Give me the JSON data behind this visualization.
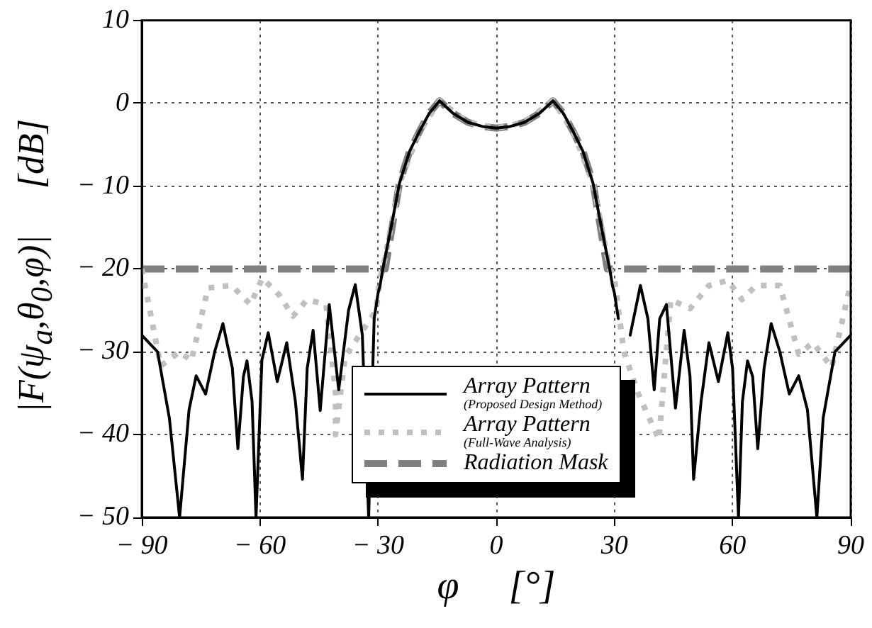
{
  "chart_data": {
    "type": "line",
    "xlabel": "φ     [°]",
    "ylabel": "|F(ψ$_{a}$,θ$_{0}$,φ)|     [dB]",
    "xlim": [
      -90,
      90
    ],
    "xticks": [
      -90,
      -60,
      -30,
      0,
      30,
      60,
      90
    ],
    "ylim": [
      -50,
      10
    ],
    "yticks": [
      -50,
      -40,
      -30,
      -20,
      -10,
      0,
      10
    ],
    "grid": true,
    "legend": "bottom",
    "marker": "none",
    "series": [
      {
        "name": "Array Pattern (Proposed Design Method)",
        "color": "#000000",
        "line_style": "solid",
        "x": [
          -90,
          -86,
          -83,
          -80.4,
          -78,
          -76.2,
          -73.8,
          -71.5,
          -69.4,
          -67,
          -65.6,
          -64.2,
          -63.3,
          -62,
          -61,
          -59.5,
          -57.9,
          -55.6,
          -53.2,
          -51,
          -49.2,
          -48,
          -46.5,
          -44.7,
          -42.4,
          -40,
          -37.5,
          -35.8,
          -34,
          -32.4,
          -31,
          -30,
          -29.5,
          -28.8,
          -26.5,
          -24.6,
          -22,
          -19.5,
          -17,
          -14.4,
          -11,
          -7.2,
          -3.5,
          0,
          3.5,
          7.2,
          11,
          14.4,
          17,
          19.5,
          22,
          24.6,
          26.5,
          28.8,
          29.5,
          30,
          31,
          32.4,
          34,
          36.6,
          38.5,
          40.1,
          41.5,
          43.2,
          45.5,
          47.7,
          49.2,
          50.1,
          52,
          54,
          56.4,
          58.8,
          60,
          61.5,
          62.5,
          63.8,
          65.1,
          66.4,
          68,
          69.8,
          72,
          74.4,
          76.8,
          79,
          81.4,
          83,
          86,
          90
        ],
        "values": [
          -28,
          -30,
          -38,
          -50,
          -37,
          -32.9,
          -35.1,
          -30,
          -26.6,
          -32,
          -41.7,
          -33,
          -31.1,
          -36,
          -50,
          -31,
          -27.7,
          -33.6,
          -28.9,
          -36,
          -45.4,
          -32,
          -27.4,
          -37.1,
          -24.3,
          -34.6,
          -25,
          -21.9,
          -28,
          -50,
          -26,
          -22.9,
          -22,
          -20,
          -14.5,
          -9.7,
          -5.8,
          -3.4,
          -1.2,
          0.3,
          -1.2,
          -2.3,
          -2.8,
          -3,
          -2.8,
          -2.3,
          -1.2,
          0.3,
          -1.2,
          -3.4,
          -5.8,
          -9.7,
          -14.5,
          -20,
          -22,
          -22.9,
          -26,
          null,
          -28,
          -22,
          -26,
          -34.6,
          -26,
          -24.3,
          -36.8,
          -27.4,
          -33,
          -45.4,
          -36,
          -28.9,
          -33.6,
          -27.7,
          -32,
          -50,
          -36,
          -31.1,
          -33,
          -41.7,
          -32,
          -26.6,
          -30,
          -35.1,
          -32.9,
          -37,
          -50,
          -38,
          -30,
          -28
        ]
      },
      {
        "name": "Array Pattern (Full-Wave Analysis)",
        "color": "#c0c0c0",
        "line_style": "dotted",
        "x": [
          -90,
          -85.2,
          -80.4,
          -77.4,
          -73.2,
          -67.2,
          -62.4,
          -59.4,
          -55.2,
          -51.6,
          -48,
          -43.2,
          -40.8,
          -40.8,
          -38.4,
          -30.5,
          -29.5,
          -28.8,
          -24.6,
          -19.5,
          -14.4,
          -7.2,
          0,
          7.2,
          14.4,
          19.5,
          24.6,
          28.8,
          30,
          32.4,
          36,
          41.3,
          44.3,
          49.2,
          54,
          58.8,
          62.4,
          66,
          72,
          76.8,
          80.4,
          85.2,
          90
        ],
        "values": [
          -20,
          -31.7,
          -30,
          -31.1,
          -22.3,
          -22,
          -24.3,
          -21.1,
          -23.1,
          -25.7,
          -23.7,
          -24.3,
          -34.9,
          -40,
          -30.6,
          -25,
          -21,
          -20,
          -9.7,
          -3.4,
          0.3,
          -2.3,
          -3,
          -2.3,
          0.3,
          -3.4,
          -9.7,
          -20,
          -21.1,
          -30,
          -35,
          -40.6,
          -23.7,
          -24.8,
          -22,
          -21.4,
          -23.7,
          -22,
          -22,
          -30.3,
          -28.9,
          -31.9,
          -21.7
        ]
      },
      {
        "name": "Radiation Mask",
        "color": "#808080",
        "line_style": "dashed",
        "x": [
          -90,
          -28.2,
          -24.6,
          -22,
          -19.5,
          -17,
          -14.4,
          -11,
          -7.2,
          -3.5,
          0,
          3.5,
          7.2,
          11,
          14.4,
          17,
          19.5,
          22,
          24.6,
          28.2,
          90
        ],
        "values": [
          -20,
          -20,
          -9.7,
          -5.8,
          -3.4,
          -1.2,
          0.3,
          -1.2,
          -2.3,
          -2.8,
          -3,
          -2.8,
          -2.3,
          -1.2,
          0.3,
          -1.2,
          -3.4,
          -5.8,
          -9.7,
          -20,
          -20
        ]
      }
    ]
  }
}
